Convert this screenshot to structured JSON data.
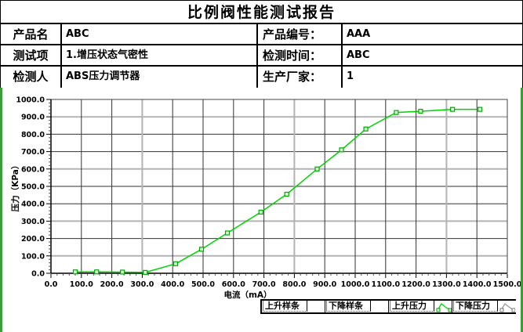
{
  "title": "比例阀性能测试报告",
  "info_table": {
    "rows": [
      {
        "label1": "产品名",
        "value1": "ABC",
        "label2": "产品编号：",
        "value2": "AAA"
      },
      {
        "label1": "测试项",
        "value1": "1.增压状态气密性",
        "label2": "检测时间：",
        "value2": "ABC"
      },
      {
        "label1": "检测人",
        "value1": "ABS压力调节器",
        "label2": "生产厂家：",
        "value2": "1"
      }
    ]
  },
  "chart_data": {
    "type": "line",
    "title": "",
    "xlabel": "电流（mA）",
    "ylabel": "压力（KPa）",
    "xlim": [
      0,
      1500
    ],
    "ylim": [
      0,
      1000
    ],
    "x_tick_labels": [
      "0.0",
      "100.0",
      "200.0",
      "300.0",
      "400.0",
      "500.0",
      "600.0",
      "700.0",
      "800.0",
      "900.0",
      "1000.0",
      "1100.0",
      "1200.0",
      "1300.0",
      "1400.0",
      "1500.0"
    ],
    "y_tick_labels": [
      "0.0",
      "100.0",
      "200.0",
      "300.0",
      "400.0",
      "500.0",
      "600.0",
      "700.0",
      "800.0",
      "900.0",
      "1000.0"
    ],
    "grid": true,
    "legend_position": "bottom-right",
    "series": [
      {
        "name": "上升压力",
        "color": "#00d300",
        "x": [
          80,
          150,
          235,
          310,
          410,
          495,
          580,
          690,
          775,
          875,
          955,
          1035,
          1135,
          1215,
          1320,
          1410
        ],
        "y": [
          8,
          8,
          7,
          5,
          55,
          138,
          232,
          352,
          455,
          600,
          710,
          830,
          925,
          932,
          943,
          943
        ]
      }
    ]
  },
  "legend": {
    "items": [
      {
        "label": "上升样条",
        "icon": "none",
        "active": false
      },
      {
        "label": "下降样条",
        "icon": "none",
        "active": false
      },
      {
        "label": "上升压力",
        "icon": "green-curve",
        "active": true
      },
      {
        "label": "下降压力",
        "icon": "gray-curve",
        "active": false
      }
    ]
  },
  "colors": {
    "curve_green": "#00d300",
    "marker_fill": "#d6ffd6",
    "panel_border_green": "#3a9d3a",
    "grid_dark": "#333333",
    "grid_gray": "#b3b3b3",
    "inactive_gray": "#999999"
  }
}
